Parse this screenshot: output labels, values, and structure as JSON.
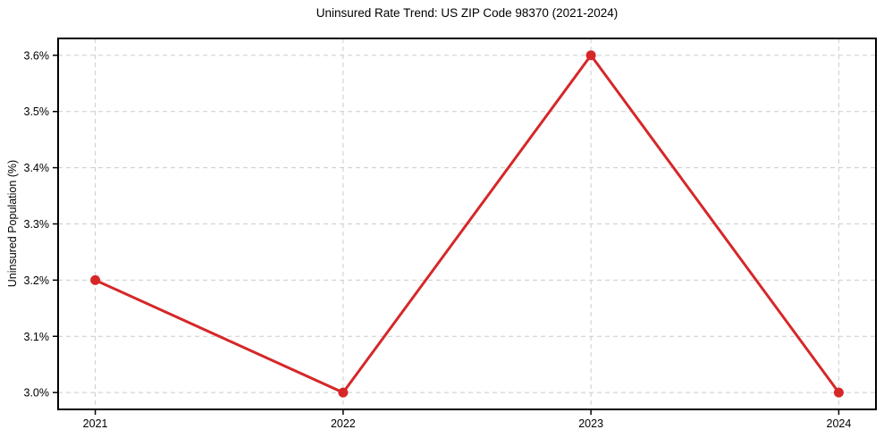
{
  "chart_data": {
    "type": "line",
    "title": "Uninsured Rate Trend: US ZIP Code 98370 (2021-2024)",
    "xlabel": "",
    "ylabel": "Uninsured Population (%)",
    "x": [
      2021,
      2022,
      2023,
      2024
    ],
    "categories": [
      "2021",
      "2022",
      "2023",
      "2024"
    ],
    "values": [
      3.2,
      3.0,
      3.6,
      3.0
    ],
    "series": [
      {
        "name": "Uninsured Population (%)",
        "values": [
          3.2,
          3.0,
          3.6,
          3.0
        ]
      }
    ],
    "yticks": [
      {
        "value": 3.0,
        "label": "3.0%"
      },
      {
        "value": 3.1,
        "label": "3.1%"
      },
      {
        "value": 3.2,
        "label": "3.2%"
      },
      {
        "value": 3.3,
        "label": "3.3%"
      },
      {
        "value": 3.4,
        "label": "3.4%"
      },
      {
        "value": 3.5,
        "label": "3.5%"
      },
      {
        "value": 3.6,
        "label": "3.6%"
      }
    ],
    "xlim": [
      2020.85,
      2024.15
    ],
    "ylim": [
      2.97,
      3.63
    ],
    "grid": true,
    "grid_style": "dashed",
    "legend": false,
    "marker": "circle",
    "colors": {
      "line": "#d62728",
      "marker": "#d62728",
      "grid": "#cccccc",
      "axis": "#000000",
      "text": "#000000",
      "background": "#ffffff"
    }
  }
}
